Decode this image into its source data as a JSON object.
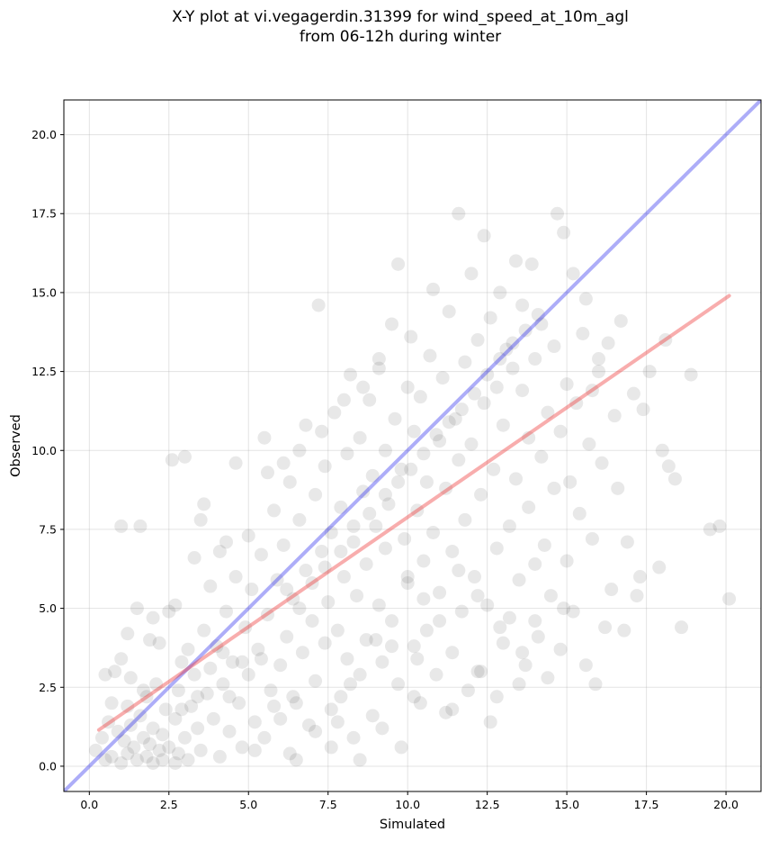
{
  "chart_data": {
    "type": "scatter",
    "title_line1": "X-Y plot at vi.vegagerdin.31399 for wind_speed_at_10m_agl",
    "title_line2": "from 06-12h during winter",
    "xlabel": "Simulated",
    "ylabel": "Observed",
    "xlim": [
      -0.8,
      21.1
    ],
    "ylim": [
      -0.8,
      21.1
    ],
    "xticks": [
      "0.0",
      "2.5",
      "5.0",
      "7.5",
      "10.0",
      "12.5",
      "15.0",
      "17.5",
      "20.0"
    ],
    "yticks": [
      "0.0",
      "2.5",
      "5.0",
      "7.5",
      "10.0",
      "12.5",
      "15.0",
      "17.5",
      "20.0"
    ],
    "grid": true,
    "point_color": "#000000",
    "point_alpha": 0.09,
    "reference_line": {
      "color": "#3333ee",
      "x": [
        -0.8,
        21.1
      ],
      "y": [
        -0.8,
        21.1
      ]
    },
    "regression_line": {
      "color": "#ee3333",
      "x": [
        0.3,
        20.1
      ],
      "y": [
        1.15,
        14.9
      ]
    },
    "points": [
      [
        0.2,
        0.5
      ],
      [
        0.4,
        0.9
      ],
      [
        0.5,
        0.2
      ],
      [
        0.6,
        1.4
      ],
      [
        0.7,
        2.0
      ],
      [
        0.7,
        0.3
      ],
      [
        0.8,
        3.0
      ],
      [
        0.9,
        1.1
      ],
      [
        1.0,
        0.1
      ],
      [
        1.0,
        7.6
      ],
      [
        1.1,
        0.8
      ],
      [
        1.2,
        1.9
      ],
      [
        1.2,
        0.4
      ],
      [
        1.3,
        2.8
      ],
      [
        1.3,
        1.3
      ],
      [
        1.4,
        0.6
      ],
      [
        1.5,
        0.2
      ],
      [
        1.5,
        5.0
      ],
      [
        1.6,
        1.6
      ],
      [
        1.6,
        7.6
      ],
      [
        1.7,
        0.9
      ],
      [
        1.8,
        0.3
      ],
      [
        1.8,
        2.2
      ],
      [
        1.9,
        4.0
      ],
      [
        1.9,
        0.7
      ],
      [
        2.0,
        1.2
      ],
      [
        2.0,
        0.1
      ],
      [
        2.1,
        2.6
      ],
      [
        2.2,
        0.5
      ],
      [
        2.2,
        3.9
      ],
      [
        2.3,
        1.0
      ],
      [
        2.3,
        0.2
      ],
      [
        2.4,
        1.8
      ],
      [
        2.5,
        0.6
      ],
      [
        2.5,
        4.9
      ],
      [
        2.6,
        9.7
      ],
      [
        2.7,
        0.1
      ],
      [
        2.7,
        1.5
      ],
      [
        2.8,
        2.4
      ],
      [
        2.8,
        0.4
      ],
      [
        2.9,
        3.3
      ],
      [
        3.0,
        9.8
      ],
      [
        3.0,
        0.9
      ],
      [
        3.1,
        0.2
      ],
      [
        3.2,
        1.9
      ],
      [
        3.3,
        6.6
      ],
      [
        3.3,
        2.9
      ],
      [
        3.4,
        1.2
      ],
      [
        3.5,
        7.8
      ],
      [
        3.5,
        0.5
      ],
      [
        3.6,
        4.3
      ],
      [
        3.7,
        2.3
      ],
      [
        3.8,
        5.7
      ],
      [
        3.9,
        1.5
      ],
      [
        4.0,
        3.8
      ],
      [
        4.1,
        0.3
      ],
      [
        4.1,
        6.8
      ],
      [
        4.2,
        2.6
      ],
      [
        4.3,
        4.9
      ],
      [
        4.4,
        1.1
      ],
      [
        4.5,
        3.3
      ],
      [
        4.6,
        9.6
      ],
      [
        4.6,
        6.0
      ],
      [
        4.7,
        2.0
      ],
      [
        4.8,
        0.6
      ],
      [
        4.9,
        4.4
      ],
      [
        5.0,
        7.3
      ],
      [
        5.0,
        2.9
      ],
      [
        5.1,
        5.6
      ],
      [
        5.2,
        1.4
      ],
      [
        5.3,
        3.7
      ],
      [
        5.4,
        6.7
      ],
      [
        5.5,
        0.9
      ],
      [
        5.5,
        10.4
      ],
      [
        5.6,
        4.8
      ],
      [
        5.7,
        2.4
      ],
      [
        5.8,
        8.1
      ],
      [
        5.9,
        5.9
      ],
      [
        6.0,
        3.2
      ],
      [
        6.0,
        1.5
      ],
      [
        6.1,
        7.0
      ],
      [
        6.2,
        4.1
      ],
      [
        6.3,
        9.0
      ],
      [
        6.3,
        0.4
      ],
      [
        6.4,
        5.3
      ],
      [
        6.5,
        2.0
      ],
      [
        6.6,
        7.8
      ],
      [
        6.7,
        3.6
      ],
      [
        6.8,
        10.8
      ],
      [
        6.8,
        6.2
      ],
      [
        6.9,
        1.3
      ],
      [
        7.0,
        4.6
      ],
      [
        7.1,
        8.6
      ],
      [
        7.1,
        2.7
      ],
      [
        7.2,
        14.6
      ],
      [
        7.3,
        6.8
      ],
      [
        7.4,
        3.9
      ],
      [
        7.4,
        9.5
      ],
      [
        7.5,
        5.2
      ],
      [
        7.6,
        1.8
      ],
      [
        7.6,
        7.4
      ],
      [
        7.7,
        11.2
      ],
      [
        7.8,
        4.3
      ],
      [
        7.9,
        8.2
      ],
      [
        7.9,
        2.2
      ],
      [
        8.0,
        6.0
      ],
      [
        8.1,
        9.9
      ],
      [
        8.1,
        3.4
      ],
      [
        8.2,
        12.4
      ],
      [
        8.3,
        7.1
      ],
      [
        8.3,
        0.9
      ],
      [
        8.4,
        5.4
      ],
      [
        8.5,
        10.4
      ],
      [
        8.5,
        2.9
      ],
      [
        8.6,
        8.7
      ],
      [
        8.7,
        6.4
      ],
      [
        8.7,
        4.0
      ],
      [
        8.8,
        11.6
      ],
      [
        8.9,
        9.2
      ],
      [
        8.9,
        1.6
      ],
      [
        9.0,
        7.6
      ],
      [
        9.1,
        5.1
      ],
      [
        9.1,
        12.9
      ],
      [
        9.2,
        3.3
      ],
      [
        9.3,
        10.0
      ],
      [
        9.3,
        6.9
      ],
      [
        9.4,
        8.3
      ],
      [
        9.5,
        14.0
      ],
      [
        9.5,
        4.6
      ],
      [
        9.6,
        11.0
      ],
      [
        9.7,
        15.9
      ],
      [
        9.7,
        2.6
      ],
      [
        9.8,
        9.4
      ],
      [
        9.8,
        0.6
      ],
      [
        9.9,
        7.2
      ],
      [
        10.0,
        12.0
      ],
      [
        10.0,
        5.8
      ],
      [
        10.1,
        13.6
      ],
      [
        10.2,
        3.8
      ],
      [
        10.2,
        10.6
      ],
      [
        10.3,
        8.1
      ],
      [
        10.4,
        2.0
      ],
      [
        10.4,
        11.7
      ],
      [
        10.5,
        6.5
      ],
      [
        10.6,
        9.0
      ],
      [
        10.6,
        4.3
      ],
      [
        10.7,
        13.0
      ],
      [
        10.8,
        15.1
      ],
      [
        10.8,
        7.4
      ],
      [
        10.9,
        2.9
      ],
      [
        11.0,
        10.3
      ],
      [
        11.0,
        5.5
      ],
      [
        11.1,
        12.3
      ],
      [
        11.2,
        8.8
      ],
      [
        11.2,
        1.7
      ],
      [
        11.3,
        14.4
      ],
      [
        11.4,
        6.8
      ],
      [
        11.4,
        3.6
      ],
      [
        11.5,
        11.0
      ],
      [
        11.6,
        17.5
      ],
      [
        11.6,
        9.7
      ],
      [
        11.7,
        4.9
      ],
      [
        11.8,
        12.8
      ],
      [
        11.8,
        7.8
      ],
      [
        11.9,
        2.4
      ],
      [
        12.0,
        15.6
      ],
      [
        12.0,
        10.2
      ],
      [
        12.1,
        6.0
      ],
      [
        12.2,
        13.5
      ],
      [
        12.2,
        3.0
      ],
      [
        12.3,
        8.6
      ],
      [
        12.4,
        16.8
      ],
      [
        12.4,
        11.5
      ],
      [
        12.5,
        5.1
      ],
      [
        12.6,
        14.2
      ],
      [
        12.6,
        1.4
      ],
      [
        12.7,
        9.4
      ],
      [
        12.8,
        12.0
      ],
      [
        12.8,
        6.9
      ],
      [
        12.9,
        15.0
      ],
      [
        13.0,
        3.9
      ],
      [
        13.0,
        10.8
      ],
      [
        13.1,
        13.2
      ],
      [
        13.2,
        7.6
      ],
      [
        13.2,
        4.7
      ],
      [
        13.3,
        12.6
      ],
      [
        13.4,
        16.0
      ],
      [
        13.4,
        9.1
      ],
      [
        13.5,
        5.9
      ],
      [
        13.6,
        11.9
      ],
      [
        13.6,
        14.6
      ],
      [
        13.7,
        3.2
      ],
      [
        13.8,
        8.2
      ],
      [
        13.8,
        10.4
      ],
      [
        13.9,
        15.9
      ],
      [
        14.0,
        6.4
      ],
      [
        14.0,
        12.9
      ],
      [
        14.1,
        4.1
      ],
      [
        14.2,
        9.8
      ],
      [
        14.2,
        14.0
      ],
      [
        14.3,
        7.0
      ],
      [
        14.4,
        11.2
      ],
      [
        14.4,
        2.8
      ],
      [
        14.5,
        5.4
      ],
      [
        14.6,
        13.3
      ],
      [
        14.6,
        8.8
      ],
      [
        14.7,
        17.5
      ],
      [
        14.8,
        10.6
      ],
      [
        14.8,
        3.7
      ],
      [
        14.9,
        16.9
      ],
      [
        15.0,
        6.5
      ],
      [
        15.0,
        12.1
      ],
      [
        15.1,
        9.0
      ],
      [
        15.2,
        15.6
      ],
      [
        15.2,
        4.9
      ],
      [
        15.3,
        11.5
      ],
      [
        15.4,
        8.0
      ],
      [
        15.5,
        13.7
      ],
      [
        15.6,
        14.8
      ],
      [
        15.6,
        3.2
      ],
      [
        15.7,
        10.2
      ],
      [
        15.8,
        7.2
      ],
      [
        15.9,
        2.6
      ],
      [
        16.0,
        12.5
      ],
      [
        16.1,
        9.6
      ],
      [
        16.2,
        4.4
      ],
      [
        16.3,
        13.4
      ],
      [
        16.4,
        5.6
      ],
      [
        16.5,
        11.1
      ],
      [
        16.6,
        8.8
      ],
      [
        16.7,
        14.1
      ],
      [
        16.8,
        4.3
      ],
      [
        16.9,
        7.1
      ],
      [
        17.1,
        11.8
      ],
      [
        17.2,
        5.4
      ],
      [
        17.3,
        6.0
      ],
      [
        17.4,
        11.3
      ],
      [
        17.6,
        12.5
      ],
      [
        17.9,
        6.3
      ],
      [
        18.0,
        10.0
      ],
      [
        18.1,
        13.5
      ],
      [
        18.2,
        9.5
      ],
      [
        18.4,
        9.1
      ],
      [
        18.6,
        4.4
      ],
      [
        18.9,
        12.4
      ],
      [
        19.5,
        7.5
      ],
      [
        19.8,
        7.6
      ],
      [
        20.1,
        5.3
      ],
      [
        16.0,
        12.9
      ],
      [
        15.8,
        11.9
      ],
      [
        5.6,
        9.3
      ],
      [
        6.1,
        9.6
      ],
      [
        6.6,
        10.0
      ],
      [
        7.3,
        10.6
      ],
      [
        8.0,
        11.6
      ],
      [
        8.6,
        12.0
      ],
      [
        9.1,
        12.6
      ],
      [
        3.6,
        8.3
      ],
      [
        4.3,
        7.1
      ],
      [
        2.7,
        5.1
      ],
      [
        1.0,
        3.4
      ],
      [
        1.7,
        2.4
      ],
      [
        1.2,
        4.2
      ],
      [
        0.5,
        2.9
      ],
      [
        2.0,
        4.7
      ],
      [
        3.1,
        3.7
      ],
      [
        3.8,
        3.1
      ],
      [
        4.4,
        2.2
      ],
      [
        5.2,
        0.5
      ],
      [
        6.5,
        0.2
      ],
      [
        7.6,
        0.6
      ],
      [
        8.5,
        0.2
      ],
      [
        9.2,
        1.2
      ],
      [
        10.2,
        2.2
      ],
      [
        11.4,
        1.8
      ],
      [
        12.3,
        3.0
      ],
      [
        12.8,
        2.2
      ],
      [
        13.5,
        2.6
      ],
      [
        14.0,
        4.6
      ],
      [
        14.9,
        5.0
      ],
      [
        10.0,
        6.0
      ],
      [
        10.5,
        5.3
      ],
      [
        11.0,
        4.6
      ],
      [
        11.6,
        6.2
      ],
      [
        12.2,
        5.4
      ],
      [
        12.9,
        4.4
      ],
      [
        13.6,
        3.6
      ],
      [
        10.3,
        3.4
      ],
      [
        9.5,
        3.8
      ],
      [
        9.0,
        4.0
      ],
      [
        8.2,
        2.6
      ],
      [
        7.8,
        1.4
      ],
      [
        7.1,
        1.1
      ],
      [
        6.4,
        2.2
      ],
      [
        5.8,
        1.9
      ],
      [
        5.4,
        3.4
      ],
      [
        4.8,
        3.3
      ],
      [
        4.2,
        3.6
      ],
      [
        3.4,
        2.2
      ],
      [
        2.9,
        1.8
      ],
      [
        6.2,
        5.6
      ],
      [
        6.6,
        5.0
      ],
      [
        7.0,
        5.8
      ],
      [
        7.4,
        6.3
      ],
      [
        7.9,
        6.8
      ],
      [
        8.3,
        7.6
      ],
      [
        8.8,
        8.0
      ],
      [
        9.3,
        8.6
      ],
      [
        9.7,
        9.0
      ],
      [
        10.1,
        9.4
      ],
      [
        10.5,
        9.9
      ],
      [
        10.9,
        10.5
      ],
      [
        11.3,
        10.9
      ],
      [
        11.7,
        11.3
      ],
      [
        12.1,
        11.8
      ],
      [
        12.5,
        12.4
      ],
      [
        12.9,
        12.9
      ],
      [
        13.3,
        13.4
      ],
      [
        13.7,
        13.8
      ],
      [
        14.1,
        14.3
      ]
    ]
  }
}
